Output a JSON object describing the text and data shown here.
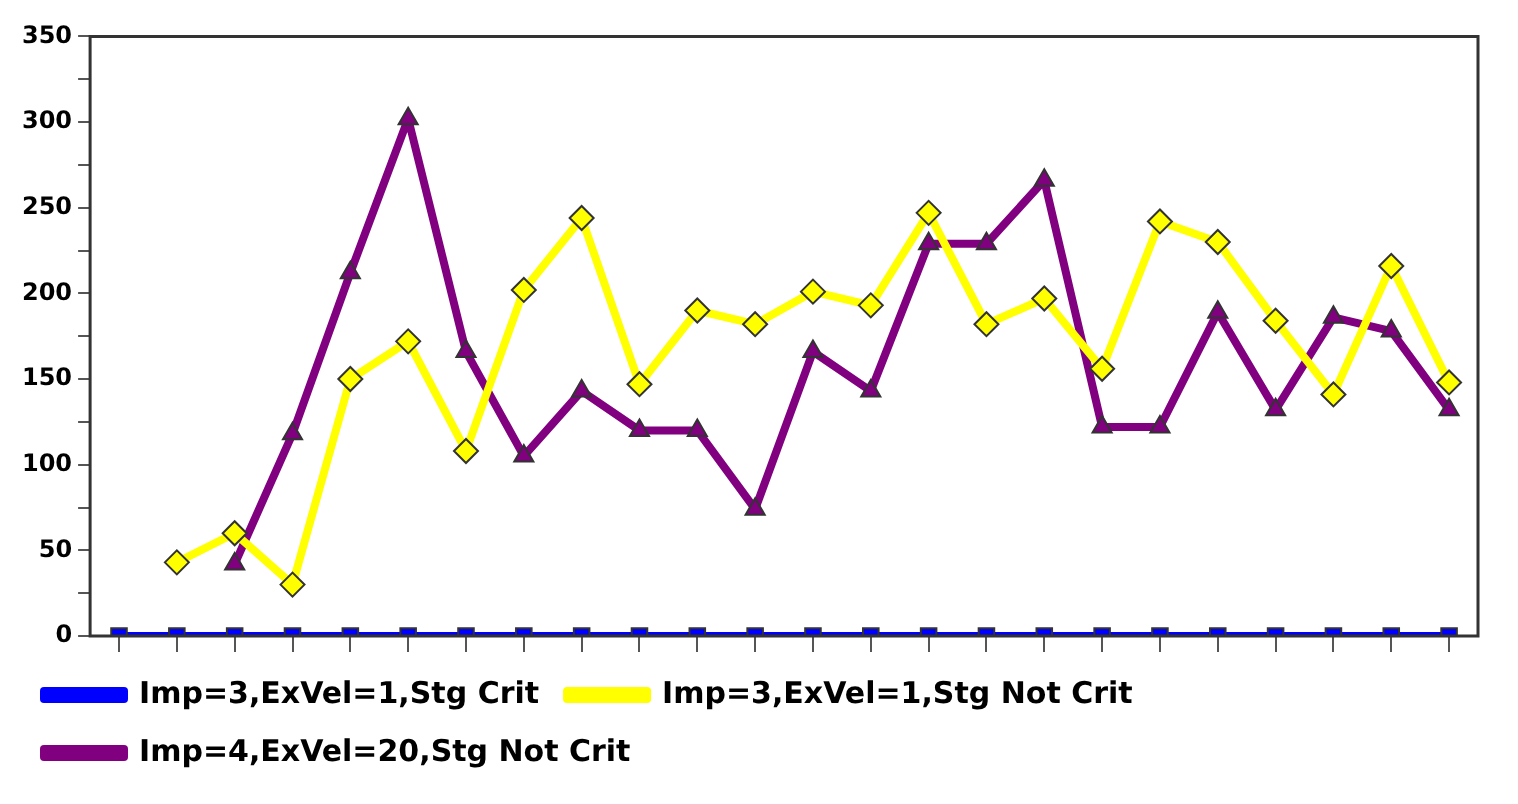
{
  "chart_data": {
    "type": "line",
    "categories": [
      null,
      null,
      null,
      null,
      null,
      null,
      null,
      null,
      null,
      null,
      null,
      null,
      null,
      null,
      null,
      null,
      null,
      null,
      null,
      null,
      null,
      null,
      null,
      null
    ],
    "series": [
      {
        "name": "Imp=3,ExVel=1,Stg Crit",
        "color": "#0000ff",
        "marker": "square",
        "values": [
          0,
          0,
          0,
          0,
          0,
          0,
          0,
          0,
          0,
          0,
          0,
          0,
          0,
          0,
          0,
          0,
          0,
          0,
          0,
          0,
          0,
          0,
          0,
          0
        ]
      },
      {
        "name": "Imp=3,ExVel=1,Stg Not Crit",
        "color": "#ffff00",
        "marker": "diamond",
        "values": [
          null,
          43,
          60,
          30,
          150,
          172,
          108,
          202,
          244,
          147,
          190,
          182,
          201,
          193,
          247,
          182,
          197,
          156,
          242,
          230,
          184,
          141,
          216,
          148
        ]
      },
      {
        "name": "Imp=4,ExVel=20,Stg Not Crit",
        "color": "#800080",
        "marker": "triangle",
        "values": [
          null,
          null,
          42,
          118,
          212,
          302,
          166,
          105,
          143,
          120,
          120,
          74,
          166,
          143,
          229,
          229,
          266,
          122,
          122,
          189,
          132,
          186,
          178,
          132
        ]
      }
    ],
    "ylim": [
      0,
      350
    ],
    "yticks": [
      0,
      {
        "value": 25,
        "label": null
      },
      50,
      {
        "value": 75,
        "label": null
      },
      100,
      {
        "value": 125,
        "label": null
      },
      150,
      {
        "value": 175,
        "label": null
      },
      200,
      {
        "value": 225,
        "label": null
      },
      250,
      {
        "value": 275,
        "label": null
      },
      300,
      {
        "value": 325,
        "label": null
      },
      350
    ],
    "grid": false,
    "legend": "bottom",
    "tick_labels": "y",
    "line_style": "solid"
  }
}
